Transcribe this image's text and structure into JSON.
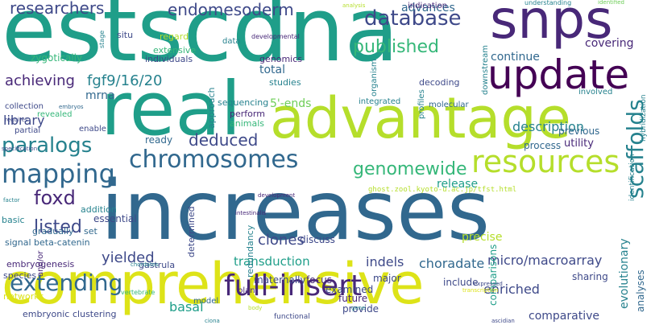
{
  "palette": {
    "dark_purple": "#440154",
    "indigo": "#482878",
    "blue_purple": "#3e4989",
    "blue": "#31688e",
    "teal": "#26828e",
    "teal_green": "#1f9e89",
    "green": "#35b779",
    "light_green": "#6ece58",
    "lime": "#b5de2b",
    "yellow": "#dde318"
  },
  "words": [
    {
      "text": "estscdna",
      "color": "teal_green"
    },
    {
      "text": "increases",
      "color": "blue"
    },
    {
      "text": "comprehensive",
      "color": "yellow"
    },
    {
      "text": "advantage",
      "color": "lime"
    },
    {
      "text": "real",
      "color": "teal_green"
    },
    {
      "text": "snps",
      "color": "indigo"
    },
    {
      "text": "update",
      "color": "dark_purple"
    },
    {
      "text": "resources",
      "color": "lime"
    },
    {
      "text": "full-insert",
      "color": "indigo"
    },
    {
      "text": "chromosomes",
      "color": "blue"
    },
    {
      "text": "mapping",
      "color": "blue"
    },
    {
      "text": "extending",
      "color": "blue"
    },
    {
      "text": "database",
      "color": "blue_purple"
    },
    {
      "text": "scaffolds",
      "color": "teal"
    },
    {
      "text": "genomewide",
      "color": "green"
    },
    {
      "text": "paralogs",
      "color": "teal"
    },
    {
      "text": "researchers",
      "color": "blue_purple"
    },
    {
      "text": "endomesoderm",
      "color": "blue_purple"
    },
    {
      "text": "published",
      "color": "green"
    },
    {
      "text": "foxd",
      "color": "indigo"
    },
    {
      "text": "listed",
      "color": "blue_purple"
    },
    {
      "text": "deduced",
      "color": "blue_purple"
    },
    {
      "text": "achieving",
      "color": "indigo"
    },
    {
      "text": "fgf9/16/20",
      "color": "teal"
    },
    {
      "text": "yielded",
      "color": "blue_purple"
    },
    {
      "text": "clones",
      "color": "blue_purple"
    },
    {
      "text": "description",
      "color": "teal"
    },
    {
      "text": "transduction",
      "color": "teal_green"
    },
    {
      "text": "choradate",
      "color": "blue"
    },
    {
      "text": "micro/macroarray",
      "color": "blue_purple"
    },
    {
      "text": "indels",
      "color": "blue_purple"
    },
    {
      "text": "enriched",
      "color": "blue_purple"
    },
    {
      "text": "basal",
      "color": "teal_green"
    },
    {
      "text": "release",
      "color": "teal_green"
    },
    {
      "text": "library",
      "color": "blue_purple"
    },
    {
      "text": "advances",
      "color": "blue"
    },
    {
      "text": "covering",
      "color": "indigo"
    },
    {
      "text": "continue",
      "color": "blue"
    },
    {
      "text": "total",
      "color": "blue"
    },
    {
      "text": "mrna",
      "color": "blue"
    },
    {
      "text": "5'-ends",
      "color": "light_green"
    },
    {
      "text": "ready",
      "color": "blue"
    },
    {
      "text": "previous",
      "color": "blue"
    },
    {
      "text": "utility",
      "color": "indigo"
    },
    {
      "text": "process",
      "color": "blue"
    },
    {
      "text": "evolutionary",
      "color": "teal"
    },
    {
      "text": "analyses",
      "color": "blue"
    },
    {
      "text": "comparative",
      "color": "blue_purple"
    },
    {
      "text": "sharing",
      "color": "blue_purple"
    },
    {
      "text": "precise",
      "color": "lime"
    },
    {
      "text": "discuss",
      "color": "blue_purple"
    },
    {
      "text": "focus",
      "color": "indigo"
    },
    {
      "text": "major",
      "color": "blue_purple"
    },
    {
      "text": "maternally",
      "color": "blue_purple"
    },
    {
      "text": "examined",
      "color": "blue_purple"
    },
    {
      "text": "future",
      "color": "indigo"
    },
    {
      "text": "provide",
      "color": "blue_purple"
    },
    {
      "text": "include",
      "color": "blue_purple"
    },
    {
      "text": "comparisons",
      "color": "teal_green"
    },
    {
      "text": "gastrula",
      "color": "blue_purple"
    },
    {
      "text": "redundancy",
      "color": "teal"
    },
    {
      "text": "determined",
      "color": "blue_purple"
    },
    {
      "text": "essential",
      "color": "blue_purple"
    },
    {
      "text": "gradually",
      "color": "blue"
    },
    {
      "text": "addition",
      "color": "teal"
    },
    {
      "text": "basic",
      "color": "teal"
    },
    {
      "text": "set",
      "color": "blue"
    },
    {
      "text": "signal",
      "color": "blue"
    },
    {
      "text": "beta-catenin",
      "color": "blue"
    },
    {
      "text": "embryogenesis",
      "color": "indigo"
    },
    {
      "text": "species",
      "color": "blue_purple"
    },
    {
      "text": "and/or",
      "color": "indigo"
    },
    {
      "text": "networks",
      "color": "yellow"
    },
    {
      "text": "embryonic",
      "color": "blue_purple"
    },
    {
      "text": "clustering",
      "color": "blue_purple"
    },
    {
      "text": "model",
      "color": "blue"
    },
    {
      "text": "plan",
      "color": "indigo"
    },
    {
      "text": "functional",
      "color": "blue_purple"
    },
    {
      "text": "vertebrate",
      "color": "green"
    },
    {
      "text": "zygotically",
      "color": "green"
    },
    {
      "text": "extensive",
      "color": "green"
    },
    {
      "text": "individuals",
      "color": "blue_purple"
    },
    {
      "text": "data",
      "color": "teal"
    },
    {
      "text": "situ",
      "color": "blue_purple"
    },
    {
      "text": "regard",
      "color": "lime"
    },
    {
      "text": "genomics",
      "color": "indigo"
    },
    {
      "text": "studies",
      "color": "teal"
    },
    {
      "text": "approach",
      "color": "teal"
    },
    {
      "text": "sequencing",
      "color": "teal"
    },
    {
      "text": "perform",
      "color": "indigo"
    },
    {
      "text": "animals",
      "color": "green"
    },
    {
      "text": "collection",
      "color": "blue_purple"
    },
    {
      "text": "revealed",
      "color": "green"
    },
    {
      "text": "partial",
      "color": "blue_purple"
    },
    {
      "text": "enable",
      "color": "blue_purple"
    },
    {
      "text": "decoding",
      "color": "blue_purple"
    },
    {
      "text": "integrated",
      "color": "teal"
    },
    {
      "text": "molecular",
      "color": "blue"
    },
    {
      "text": "indication",
      "color": "indigo"
    },
    {
      "text": "organism",
      "color": "teal"
    },
    {
      "text": "downstream",
      "color": "teal"
    },
    {
      "text": "profiles",
      "color": "teal"
    },
    {
      "text": "involved",
      "color": "teal"
    },
    {
      "text": "hybridization",
      "color": "teal"
    },
    {
      "text": "identification",
      "color": "teal"
    },
    {
      "text": "ghost.zool.kyoto-u.ac.jp/tfst.html",
      "color": "lime"
    },
    {
      "text": "developmental",
      "color": "indigo"
    },
    {
      "text": "understanding",
      "color": "teal"
    },
    {
      "text": "identified",
      "color": "light_green"
    },
    {
      "text": "analysis",
      "color": "lime"
    },
    {
      "text": "stage",
      "color": "teal"
    },
    {
      "text": "embryos",
      "color": "blue"
    },
    {
      "text": "requires",
      "color": "blue_purple"
    },
    {
      "text": "specification",
      "color": "blue_purple"
    },
    {
      "text": "development",
      "color": "indigo"
    },
    {
      "text": "intestinalis",
      "color": "indigo"
    },
    {
      "text": "chordates",
      "color": "teal"
    },
    {
      "text": "expressed",
      "color": "blue_purple"
    },
    {
      "text": "transcription",
      "color": "yellow"
    },
    {
      "text": "body",
      "color": "lime"
    },
    {
      "text": "gene",
      "color": "teal"
    },
    {
      "text": "ciona",
      "color": "teal"
    },
    {
      "text": "ascidian",
      "color": "blue_purple"
    },
    {
      "text": "factor",
      "color": "teal"
    }
  ]
}
